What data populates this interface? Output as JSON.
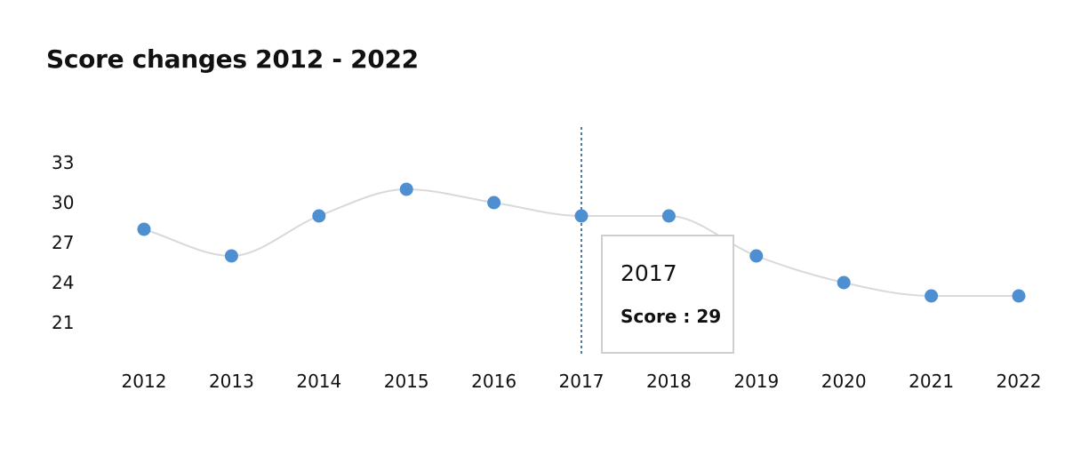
{
  "chart_data": {
    "type": "line",
    "title": "Score changes 2012 - 2022",
    "x": [
      "2012",
      "2013",
      "2014",
      "2015",
      "2016",
      "2017",
      "2018",
      "2019",
      "2020",
      "2021",
      "2022"
    ],
    "series": [
      {
        "values": [
          28,
          26,
          29,
          31,
          30,
          29,
          29,
          26,
          24,
          23,
          23
        ]
      }
    ],
    "yticks": [
      21,
      24,
      27,
      30,
      33
    ],
    "ylim": [
      21,
      33
    ],
    "grid": false,
    "line_color": "#d9d9d9",
    "point_color": "#4e8fd1",
    "crosshair_color": "#3d7fb8",
    "tooltip": {
      "year": "2017",
      "label": "Score : 29",
      "index": 5
    }
  }
}
